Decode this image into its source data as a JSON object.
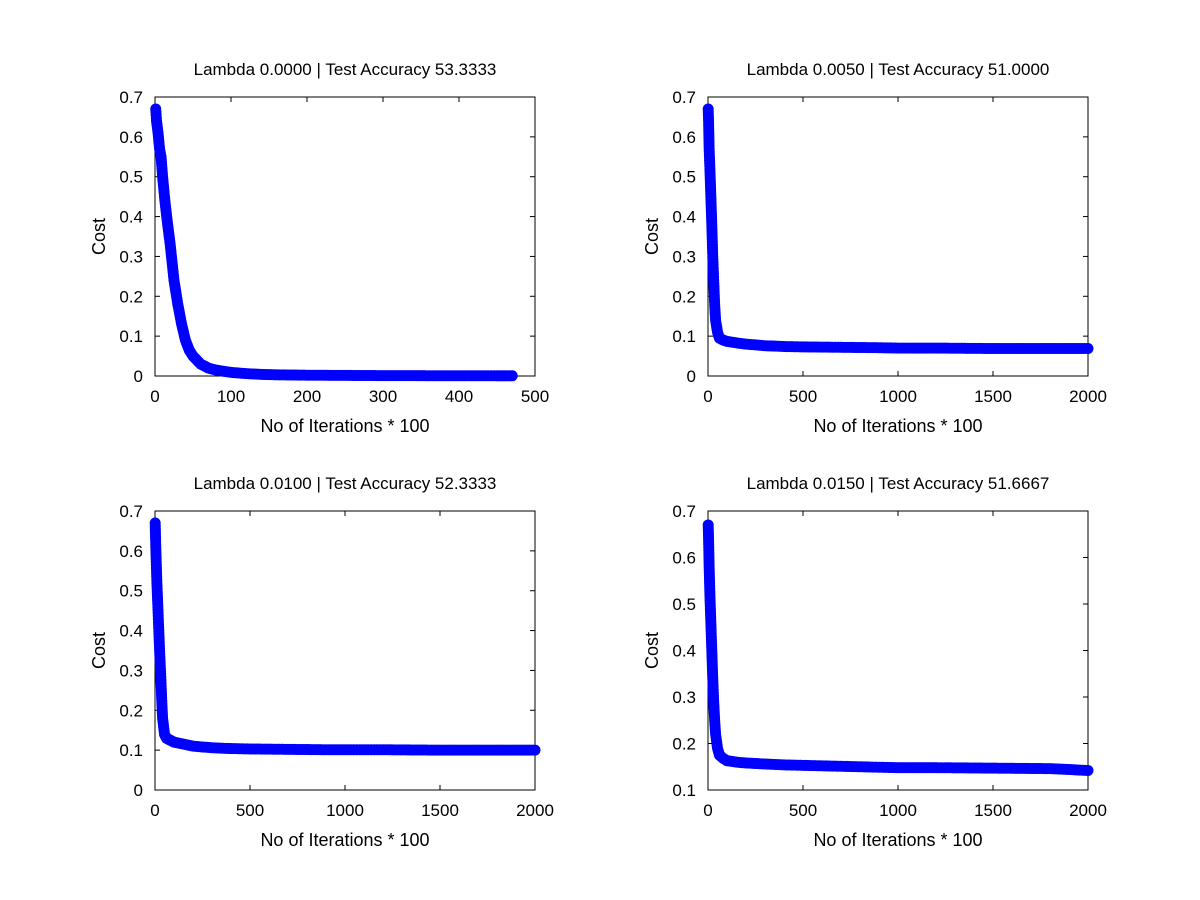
{
  "figure": {
    "marker_color": "#0000ff",
    "axes_color": "#000000",
    "background": "#ffffff"
  },
  "chart_data": [
    {
      "type": "scatter",
      "title": "Lambda 0.0000 | Test Accuracy 53.3333",
      "xlabel": "No of Iterations * 100",
      "ylabel": "Cost",
      "xlim": [
        0,
        500
      ],
      "ylim": [
        0,
        0.7
      ],
      "xticks": [
        0,
        100,
        200,
        300,
        400,
        500
      ],
      "yticks": [
        0,
        0.1,
        0.2,
        0.3,
        0.4,
        0.5,
        0.6,
        0.7
      ],
      "series": [
        {
          "x": [
            1,
            2,
            4,
            6,
            8,
            10,
            13,
            16,
            20,
            25,
            30,
            35,
            40,
            45,
            50,
            55,
            60,
            65,
            70,
            80,
            90,
            100,
            120,
            140,
            160,
            200,
            250,
            300,
            350,
            400,
            450,
            470
          ],
          "y": [
            0.67,
            0.64,
            0.61,
            0.57,
            0.55,
            0.5,
            0.44,
            0.39,
            0.33,
            0.24,
            0.18,
            0.13,
            0.09,
            0.065,
            0.05,
            0.04,
            0.03,
            0.025,
            0.02,
            0.015,
            0.012,
            0.009,
            0.006,
            0.004,
            0.003,
            0.002,
            0.0015,
            0.001,
            0.0008,
            0.0006,
            0.0005,
            0.0005
          ]
        }
      ]
    },
    {
      "type": "scatter",
      "title": "Lambda 0.0050 | Test Accuracy 51.0000",
      "xlabel": "No of Iterations * 100",
      "ylabel": "Cost",
      "xlim": [
        0,
        2000
      ],
      "ylim": [
        0,
        0.7
      ],
      "xticks": [
        0,
        500,
        1000,
        1500,
        2000
      ],
      "yticks": [
        0,
        0.1,
        0.2,
        0.3,
        0.4,
        0.5,
        0.6,
        0.7
      ],
      "series": [
        {
          "x": [
            1,
            3,
            6,
            10,
            15,
            20,
            25,
            30,
            35,
            40,
            50,
            60,
            80,
            100,
            150,
            200,
            300,
            400,
            500,
            700,
            900,
            1000,
            1200,
            1500,
            1800,
            2000
          ],
          "y": [
            0.67,
            0.64,
            0.57,
            0.52,
            0.45,
            0.38,
            0.3,
            0.24,
            0.18,
            0.14,
            0.11,
            0.095,
            0.09,
            0.087,
            0.083,
            0.08,
            0.076,
            0.074,
            0.073,
            0.072,
            0.071,
            0.07,
            0.07,
            0.069,
            0.069,
            0.069
          ]
        }
      ]
    },
    {
      "type": "scatter",
      "title": "Lambda 0.0100 | Test Accuracy 52.3333",
      "xlabel": "No of Iterations * 100",
      "ylabel": "Cost",
      "xlim": [
        0,
        2000
      ],
      "ylim": [
        0,
        0.7
      ],
      "xticks": [
        0,
        500,
        1000,
        1500,
        2000
      ],
      "yticks": [
        0,
        0.1,
        0.2,
        0.3,
        0.4,
        0.5,
        0.6,
        0.7
      ],
      "series": [
        {
          "x": [
            1,
            3,
            6,
            10,
            15,
            20,
            25,
            30,
            35,
            40,
            50,
            60,
            80,
            100,
            150,
            200,
            300,
            400,
            500,
            700,
            900,
            1000,
            1200,
            1500,
            1800,
            2000
          ],
          "y": [
            0.67,
            0.63,
            0.58,
            0.52,
            0.46,
            0.4,
            0.34,
            0.29,
            0.23,
            0.18,
            0.14,
            0.13,
            0.125,
            0.12,
            0.115,
            0.11,
            0.106,
            0.104,
            0.103,
            0.102,
            0.101,
            0.101,
            0.101,
            0.1,
            0.1,
            0.1
          ]
        }
      ]
    },
    {
      "type": "scatter",
      "title": "Lambda 0.0150 | Test Accuracy 51.6667",
      "xlabel": "No of Iterations * 100",
      "ylabel": "Cost",
      "xlim": [
        0,
        2000
      ],
      "ylim": [
        0.1,
        0.7
      ],
      "xticks": [
        0,
        500,
        1000,
        1500,
        2000
      ],
      "yticks": [
        0.1,
        0.2,
        0.3,
        0.4,
        0.5,
        0.6,
        0.7
      ],
      "series": [
        {
          "x": [
            1,
            3,
            6,
            10,
            15,
            20,
            25,
            30,
            35,
            40,
            50,
            60,
            80,
            100,
            150,
            200,
            300,
            400,
            500,
            700,
            900,
            1000,
            1200,
            1500,
            1800,
            1900,
            2000
          ],
          "y": [
            0.67,
            0.64,
            0.58,
            0.52,
            0.46,
            0.4,
            0.34,
            0.29,
            0.25,
            0.22,
            0.19,
            0.175,
            0.168,
            0.163,
            0.16,
            0.158,
            0.156,
            0.154,
            0.153,
            0.151,
            0.149,
            0.148,
            0.148,
            0.147,
            0.146,
            0.144,
            0.142
          ]
        }
      ]
    }
  ]
}
